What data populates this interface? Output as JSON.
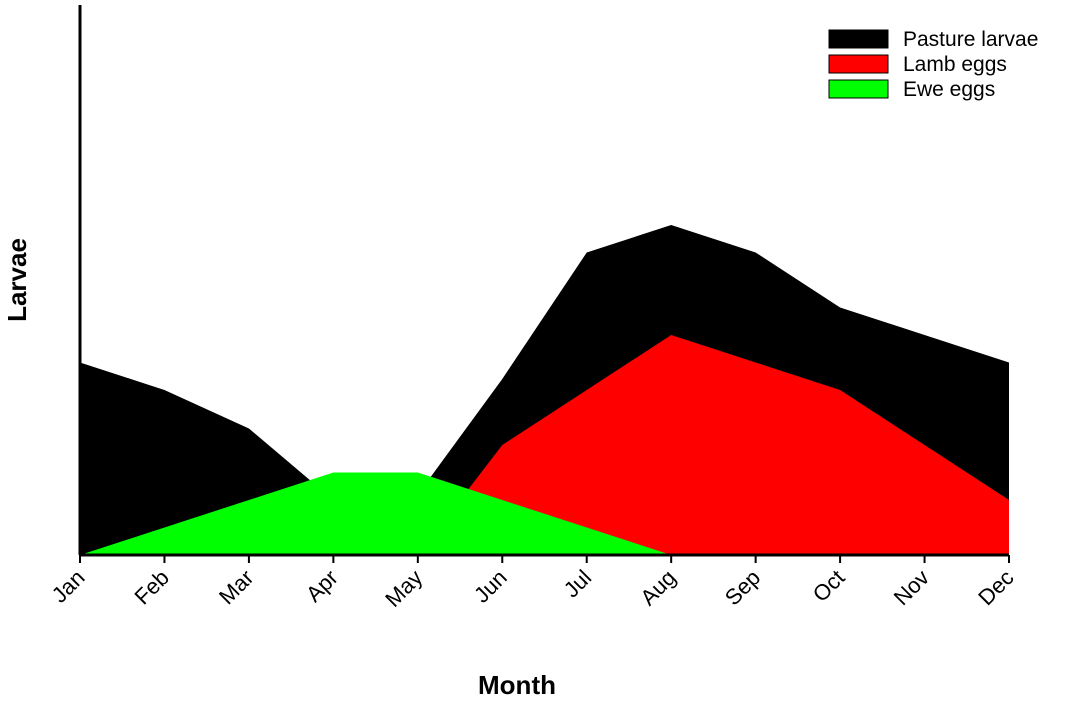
{
  "chart_data": {
    "type": "area",
    "xlabel": "Month",
    "ylabel": "Larvae",
    "categories": [
      "Jan",
      "Feb",
      "Mar",
      "Apr",
      "May",
      "Jun",
      "Jul",
      "Aug",
      "Sep",
      "Oct",
      "Nov",
      "Dec"
    ],
    "y_axis_ticks_visible": false,
    "ylim": [
      0,
      100
    ],
    "grid": false,
    "legend_position": "top-right",
    "series": [
      {
        "name": "Pasture larvae",
        "color": "#000000",
        "values": [
          35,
          30,
          23,
          10,
          11,
          32,
          55,
          60,
          55,
          45,
          40,
          35
        ]
      },
      {
        "name": "Lamb eggs",
        "color": "#ff0000",
        "values": [
          0,
          0,
          0,
          0,
          0,
          20,
          30,
          40,
          35,
          30,
          20,
          10
        ]
      },
      {
        "name": "Ewe eggs",
        "color": "#00ff00",
        "values": [
          0,
          5,
          10,
          15,
          15,
          10,
          5,
          0,
          0,
          0,
          0,
          0
        ]
      }
    ]
  }
}
